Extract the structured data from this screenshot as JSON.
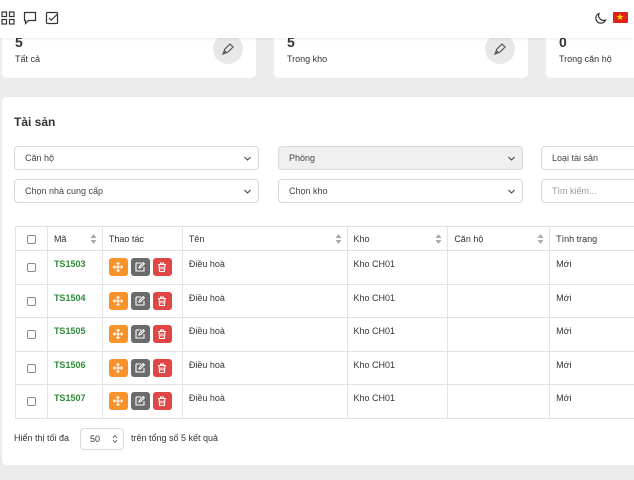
{
  "stats": [
    {
      "value": "5",
      "label": "Tất cả"
    },
    {
      "value": "5",
      "label": "Trong kho"
    },
    {
      "value": "0",
      "label": "Trong căn hộ"
    }
  ],
  "panel": {
    "title": "Tài sản",
    "filters": {
      "apartment": "Căn hộ",
      "room": "Phòng",
      "asset_type": "Loại tài sản",
      "supplier": "Chọn nhà cung cấp",
      "warehouse": "Chọn kho",
      "search_placeholder": "Tìm kiếm..."
    },
    "table": {
      "headers": {
        "code": "Mã",
        "actions": "Thao tác",
        "name": "Tên",
        "warehouse": "Kho",
        "apartment": "Căn hộ",
        "status": "Tình trạng"
      },
      "rows": [
        {
          "code": "TS1503",
          "name": "Điều hoà",
          "warehouse": "Kho CH01",
          "apartment": "",
          "status": "Mới"
        },
        {
          "code": "TS1504",
          "name": "Điều hoà",
          "warehouse": "Kho CH01",
          "apartment": "",
          "status": "Mới"
        },
        {
          "code": "TS1505",
          "name": "Điều hoà",
          "warehouse": "Kho CH01",
          "apartment": "",
          "status": "Mới"
        },
        {
          "code": "TS1506",
          "name": "Điều hoà",
          "warehouse": "Kho CH01",
          "apartment": "",
          "status": "Mới"
        },
        {
          "code": "TS1507",
          "name": "Điều hoà",
          "warehouse": "Kho CH01",
          "apartment": "",
          "status": "Mới"
        }
      ]
    },
    "footer": {
      "show_label": "Hiển thị tối đa",
      "page_size": "50",
      "total_label": "trên tổng số 5 kết quả"
    }
  },
  "colors": {
    "code_green": "#2e8b3a",
    "move_orange": "#f7932a",
    "edit_gray": "#6b6b6b",
    "delete_red": "#e04646"
  }
}
